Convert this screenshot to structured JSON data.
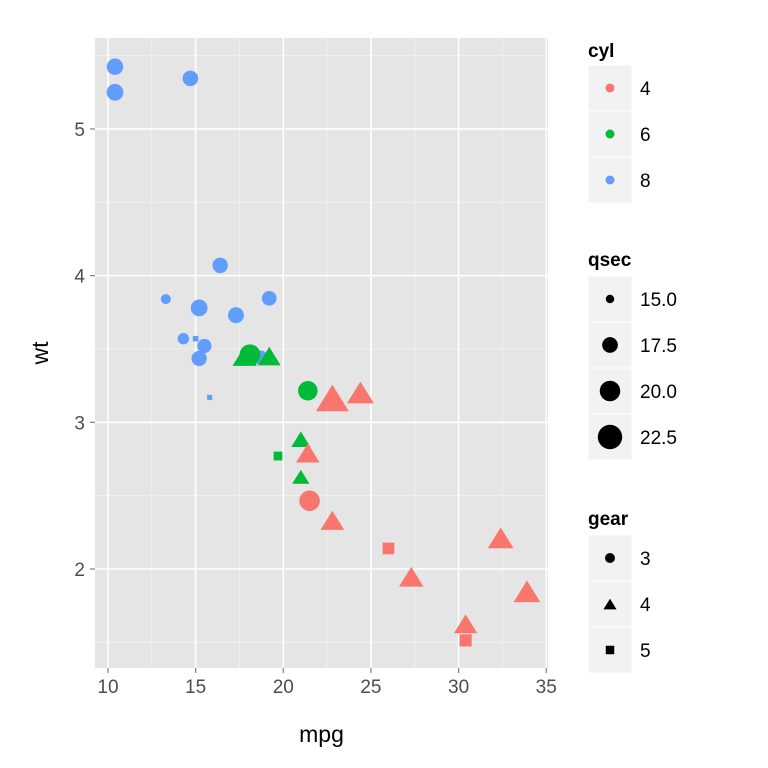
{
  "chart_data": {
    "type": "scatter",
    "xlabel": "mpg",
    "ylabel": "wt",
    "xlim": [
      9.26,
      35.1
    ],
    "ylim": [
      1.325,
      5.62
    ],
    "x_ticks": [
      10,
      15,
      20,
      25,
      30,
      35
    ],
    "y_ticks": [
      2,
      3,
      4,
      5
    ],
    "grid": true,
    "legend_placement": "right",
    "colors": {
      "4": "#F8766D",
      "6": "#00BA38",
      "8": "#619CFF"
    },
    "legends": [
      {
        "title": "cyl",
        "entries": [
          "4",
          "6",
          "8"
        ]
      },
      {
        "title": "qsec",
        "entries": [
          "15.0",
          "17.5",
          "20.0",
          "22.5"
        ],
        "values": [
          15,
          17.5,
          20,
          22.5
        ]
      },
      {
        "title": "gear",
        "entries": [
          "3",
          "4",
          "5"
        ],
        "shapes": [
          "circle",
          "triangle",
          "square"
        ]
      }
    ],
    "points": [
      {
        "mpg": 21.0,
        "wt": 2.62,
        "cyl": 6,
        "qsec": 16.46,
        "gear": 4
      },
      {
        "mpg": 21.0,
        "wt": 2.875,
        "cyl": 6,
        "qsec": 17.02,
        "gear": 4
      },
      {
        "mpg": 22.8,
        "wt": 2.32,
        "cyl": 4,
        "qsec": 18.61,
        "gear": 4
      },
      {
        "mpg": 21.4,
        "wt": 3.215,
        "cyl": 6,
        "qsec": 19.44,
        "gear": 3
      },
      {
        "mpg": 18.7,
        "wt": 3.44,
        "cyl": 8,
        "qsec": 17.02,
        "gear": 3
      },
      {
        "mpg": 18.1,
        "wt": 3.46,
        "cyl": 6,
        "qsec": 20.22,
        "gear": 3
      },
      {
        "mpg": 14.3,
        "wt": 3.57,
        "cyl": 8,
        "qsec": 15.84,
        "gear": 3
      },
      {
        "mpg": 24.4,
        "wt": 3.19,
        "cyl": 4,
        "qsec": 20.0,
        "gear": 4
      },
      {
        "mpg": 22.8,
        "wt": 3.15,
        "cyl": 4,
        "qsec": 22.9,
        "gear": 4
      },
      {
        "mpg": 19.2,
        "wt": 3.44,
        "cyl": 6,
        "qsec": 18.3,
        "gear": 4
      },
      {
        "mpg": 17.8,
        "wt": 3.44,
        "cyl": 6,
        "qsec": 18.9,
        "gear": 4
      },
      {
        "mpg": 16.4,
        "wt": 4.07,
        "cyl": 8,
        "qsec": 17.4,
        "gear": 3
      },
      {
        "mpg": 17.3,
        "wt": 3.73,
        "cyl": 8,
        "qsec": 17.6,
        "gear": 3
      },
      {
        "mpg": 15.2,
        "wt": 3.78,
        "cyl": 8,
        "qsec": 18.0,
        "gear": 3
      },
      {
        "mpg": 10.4,
        "wt": 5.25,
        "cyl": 8,
        "qsec": 17.98,
        "gear": 3
      },
      {
        "mpg": 10.4,
        "wt": 5.424,
        "cyl": 8,
        "qsec": 17.82,
        "gear": 3
      },
      {
        "mpg": 14.7,
        "wt": 5.345,
        "cyl": 8,
        "qsec": 17.42,
        "gear": 3
      },
      {
        "mpg": 32.4,
        "wt": 2.2,
        "cyl": 4,
        "qsec": 19.47,
        "gear": 4
      },
      {
        "mpg": 30.4,
        "wt": 1.615,
        "cyl": 4,
        "qsec": 18.52,
        "gear": 4
      },
      {
        "mpg": 33.9,
        "wt": 1.835,
        "cyl": 4,
        "qsec": 19.9,
        "gear": 4
      },
      {
        "mpg": 21.5,
        "wt": 2.465,
        "cyl": 4,
        "qsec": 20.01,
        "gear": 3
      },
      {
        "mpg": 15.5,
        "wt": 3.52,
        "cyl": 8,
        "qsec": 16.87,
        "gear": 3
      },
      {
        "mpg": 15.2,
        "wt": 3.435,
        "cyl": 8,
        "qsec": 17.3,
        "gear": 3
      },
      {
        "mpg": 13.3,
        "wt": 3.84,
        "cyl": 8,
        "qsec": 15.41,
        "gear": 3
      },
      {
        "mpg": 19.2,
        "wt": 3.845,
        "cyl": 8,
        "qsec": 17.05,
        "gear": 3
      },
      {
        "mpg": 27.3,
        "wt": 1.935,
        "cyl": 4,
        "qsec": 18.9,
        "gear": 4
      },
      {
        "mpg": 26.0,
        "wt": 2.14,
        "cyl": 4,
        "qsec": 16.7,
        "gear": 5
      },
      {
        "mpg": 30.4,
        "wt": 1.513,
        "cyl": 4,
        "qsec": 16.9,
        "gear": 5
      },
      {
        "mpg": 15.8,
        "wt": 3.17,
        "cyl": 8,
        "qsec": 14.5,
        "gear": 5
      },
      {
        "mpg": 19.7,
        "wt": 2.77,
        "cyl": 6,
        "qsec": 15.5,
        "gear": 5
      },
      {
        "mpg": 15.0,
        "wt": 3.57,
        "cyl": 8,
        "qsec": 14.6,
        "gear": 5
      },
      {
        "mpg": 21.4,
        "wt": 2.78,
        "cyl": 4,
        "qsec": 18.6,
        "gear": 4
      }
    ]
  }
}
